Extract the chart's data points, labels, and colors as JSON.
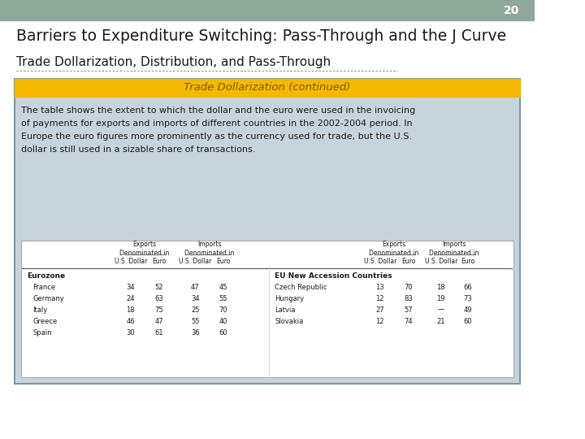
{
  "slide_number": "20",
  "title": "Barriers to Expenditure Switching: Pass-Through and the J Curve",
  "subtitle": "Trade Dollarization, Distribution, and Pass-Through",
  "box_title": "Trade Dollarization (continued)",
  "body_text_lines": [
    "The table shows the extent to which the dollar and the euro were used in the invoicing",
    "of payments for exports and imports of different countries in the 2002-2004 period. In",
    "Europe the euro figures more prominently as the currency used for trade, but the U.S.",
    "dollar is still used in a sizable share of transactions."
  ],
  "header_bg": "#8fa89a",
  "slide_bg": "#ffffff",
  "box_bg": "#c8d4dc",
  "box_title_bg": "#f5b800",
  "box_title_color": "#7a5a00",
  "box_border": "#7a96a8",
  "table_bg": "#ffffff",
  "left_group_label": "Eurozone",
  "right_group_label": "EU New Accession Countries",
  "left_rows": [
    [
      "France",
      "34",
      "52",
      "47",
      "45"
    ],
    [
      "Germany",
      "24",
      "63",
      "34",
      "55"
    ],
    [
      "Italy",
      "18",
      "75",
      "25",
      "70"
    ],
    [
      "Greece",
      "46",
      "47",
      "55",
      "40"
    ],
    [
      "Spain",
      "30",
      "61",
      "36",
      "60"
    ]
  ],
  "right_rows": [
    [
      "Czech Republic",
      "13",
      "70",
      "18",
      "66"
    ],
    [
      "Hungary",
      "12",
      "83",
      "19",
      "73"
    ],
    [
      "Latvia",
      "27",
      "57",
      "—",
      "49"
    ],
    [
      "Slovakia",
      "12",
      "74",
      "21",
      "60"
    ]
  ]
}
